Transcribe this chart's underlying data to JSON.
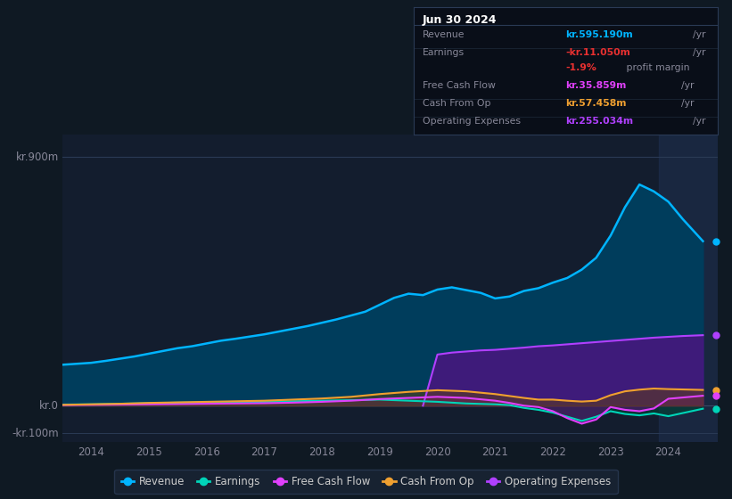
{
  "bg_color": "#0f1923",
  "plot_bg_color": "#131d2e",
  "grid_color": "#2a3a55",
  "ylim": [
    -130,
    980
  ],
  "xlim_start": 2013.5,
  "xlim_end": 2024.85,
  "xticks": [
    2014,
    2015,
    2016,
    2017,
    2018,
    2019,
    2020,
    2021,
    2022,
    2023,
    2024
  ],
  "y_labels": [
    {
      "y": 900,
      "label": "kr.900m"
    },
    {
      "y": 0,
      "label": "kr.0"
    },
    {
      "y": -100,
      "label": "-kr.100m"
    }
  ],
  "series": {
    "revenue": {
      "color": "#00b4ff",
      "fill_color": "#003d5c",
      "label": "Revenue",
      "x": [
        2013.5,
        2014.0,
        2014.25,
        2014.5,
        2014.75,
        2015.0,
        2015.25,
        2015.5,
        2015.75,
        2016.0,
        2016.25,
        2016.5,
        2016.75,
        2017.0,
        2017.25,
        2017.5,
        2017.75,
        2018.0,
        2018.25,
        2018.5,
        2018.75,
        2019.0,
        2019.25,
        2019.5,
        2019.75,
        2020.0,
        2020.25,
        2020.5,
        2020.75,
        2021.0,
        2021.25,
        2021.5,
        2021.75,
        2022.0,
        2022.25,
        2022.5,
        2022.75,
        2023.0,
        2023.25,
        2023.5,
        2023.75,
        2024.0,
        2024.25,
        2024.6
      ],
      "y": [
        148,
        155,
        162,
        170,
        178,
        188,
        198,
        208,
        215,
        225,
        235,
        242,
        250,
        258,
        268,
        278,
        288,
        300,
        312,
        326,
        340,
        365,
        390,
        405,
        400,
        420,
        428,
        418,
        408,
        388,
        395,
        415,
        425,
        445,
        462,
        492,
        535,
        615,
        718,
        800,
        775,
        738,
        675,
        595
      ]
    },
    "earnings": {
      "color": "#00d4b8",
      "fill_color": "#004433",
      "label": "Earnings",
      "x": [
        2013.5,
        2014.0,
        2014.5,
        2015.0,
        2015.5,
        2016.0,
        2016.5,
        2017.0,
        2017.5,
        2018.0,
        2018.5,
        2019.0,
        2019.5,
        2020.0,
        2020.5,
        2021.0,
        2021.25,
        2021.5,
        2021.75,
        2022.0,
        2022.25,
        2022.5,
        2022.75,
        2023.0,
        2023.25,
        2023.5,
        2023.75,
        2024.0,
        2024.6
      ],
      "y": [
        4,
        5,
        7,
        9,
        11,
        12,
        13,
        14,
        16,
        18,
        20,
        22,
        18,
        14,
        8,
        5,
        2,
        -8,
        -15,
        -25,
        -40,
        -55,
        -40,
        -20,
        -30,
        -35,
        -28,
        -38,
        -11
      ]
    },
    "free_cash_flow": {
      "color": "#e040fb",
      "fill_color": "#6a1080",
      "label": "Free Cash Flow",
      "x": [
        2013.5,
        2014.0,
        2014.5,
        2015.0,
        2015.5,
        2016.0,
        2016.5,
        2017.0,
        2017.5,
        2018.0,
        2018.5,
        2019.0,
        2019.5,
        2020.0,
        2020.5,
        2021.0,
        2021.25,
        2021.5,
        2021.75,
        2022.0,
        2022.25,
        2022.5,
        2022.75,
        2023.0,
        2023.25,
        2023.5,
        2023.75,
        2024.0,
        2024.6
      ],
      "y": [
        2,
        3,
        4,
        5,
        6,
        7,
        8,
        9,
        11,
        14,
        18,
        24,
        28,
        32,
        28,
        18,
        10,
        0,
        -5,
        -20,
        -45,
        -65,
        -50,
        -5,
        -15,
        -20,
        -10,
        25,
        36
      ]
    },
    "cash_from_op": {
      "color": "#f0a030",
      "fill_color": "#604010",
      "label": "Cash From Op",
      "x": [
        2013.5,
        2014.0,
        2014.5,
        2015.0,
        2015.5,
        2016.0,
        2016.5,
        2017.0,
        2017.5,
        2018.0,
        2018.5,
        2019.0,
        2019.5,
        2020.0,
        2020.5,
        2021.0,
        2021.25,
        2021.5,
        2021.75,
        2022.0,
        2022.25,
        2022.5,
        2022.75,
        2023.0,
        2023.25,
        2023.5,
        2023.75,
        2024.0,
        2024.6
      ],
      "y": [
        3,
        5,
        7,
        10,
        12,
        14,
        16,
        18,
        22,
        26,
        32,
        42,
        50,
        56,
        52,
        42,
        35,
        28,
        22,
        22,
        18,
        15,
        18,
        38,
        52,
        58,
        62,
        60,
        57
      ]
    },
    "operating_expenses": {
      "color": "#b040ff",
      "fill_color": "#4a1580",
      "label": "Operating Expenses",
      "x": [
        2019.75,
        2020.0,
        2020.25,
        2020.5,
        2020.75,
        2021.0,
        2021.25,
        2021.5,
        2021.75,
        2022.0,
        2022.25,
        2022.5,
        2022.75,
        2023.0,
        2023.25,
        2023.5,
        2023.75,
        2024.0,
        2024.25,
        2024.6
      ],
      "y": [
        0,
        185,
        192,
        196,
        200,
        202,
        206,
        210,
        215,
        218,
        222,
        226,
        230,
        234,
        238,
        242,
        246,
        249,
        252,
        255
      ]
    }
  },
  "legend": [
    {
      "label": "Revenue",
      "color": "#00b4ff"
    },
    {
      "label": "Earnings",
      "color": "#00d4b8"
    },
    {
      "label": "Free Cash Flow",
      "color": "#e040fb"
    },
    {
      "label": "Cash From Op",
      "color": "#f0a030"
    },
    {
      "label": "Operating Expenses",
      "color": "#b040ff"
    }
  ],
  "highlight_x_start": 2023.83,
  "highlight_x_end": 2024.85,
  "info_box": {
    "date": "Jun 30 2024",
    "rows": [
      {
        "label": "Revenue",
        "value": "kr.595.190m",
        "unit": "/yr",
        "value_color": "#00b4ff"
      },
      {
        "label": "Earnings",
        "value": "-kr.11.050m",
        "unit": "/yr",
        "value_color": "#e83030"
      },
      {
        "label": "",
        "value": "-1.9%",
        "unit": " profit margin",
        "value_color": "#e83030",
        "unit_color": "#888899"
      },
      {
        "label": "Free Cash Flow",
        "value": "kr.35.859m",
        "unit": "/yr",
        "value_color": "#e040fb"
      },
      {
        "label": "Cash From Op",
        "value": "kr.57.458m",
        "unit": "/yr",
        "value_color": "#f0a030"
      },
      {
        "label": "Operating Expenses",
        "value": "kr.255.034m",
        "unit": "/yr",
        "value_color": "#b040ff"
      }
    ]
  }
}
